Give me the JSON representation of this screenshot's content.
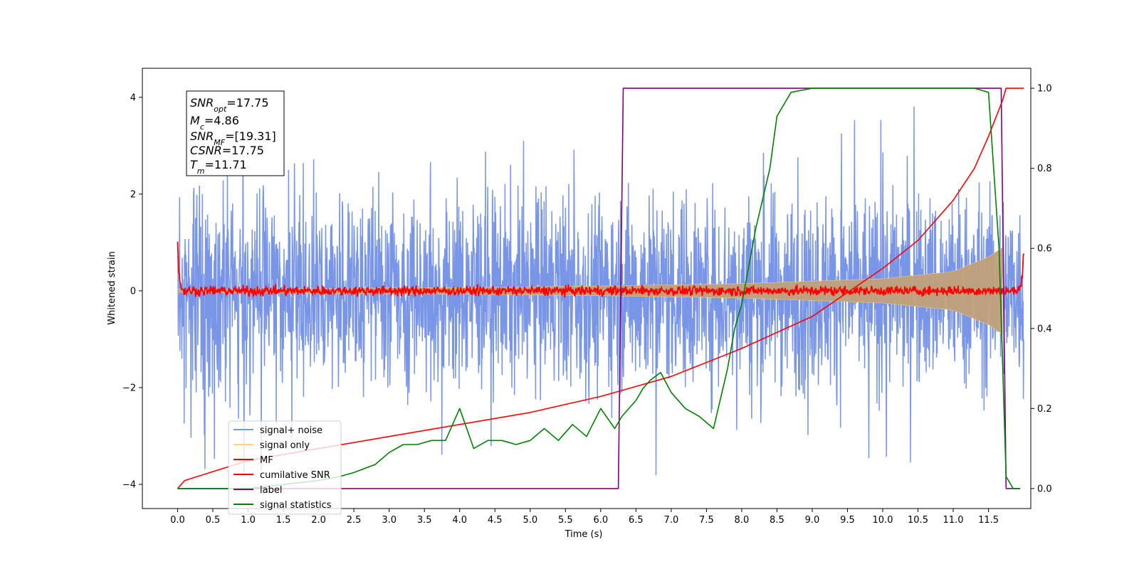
{
  "chart_data": {
    "type": "line",
    "title": "",
    "xlabel": "Time (s)",
    "ylabel": "Whitened strain",
    "y2label": "",
    "xlim": [
      -0.5,
      12.1
    ],
    "ylim": [
      -4.5,
      4.6
    ],
    "y2lim": [
      -0.05,
      1.05
    ],
    "duration": 12.0,
    "x_ticks": [
      "0.0",
      "0.5",
      "1.0",
      "1.5",
      "2.0",
      "2.5",
      "3.0",
      "3.5",
      "4.0",
      "4.5",
      "5.0",
      "5.5",
      "6.0",
      "6.5",
      "7.0",
      "7.5",
      "8.0",
      "8.5",
      "9.0",
      "9.5",
      "10.0",
      "10.5",
      "11.0",
      "11.5"
    ],
    "y_ticks": [
      "-4",
      "-2",
      "0",
      "2",
      "4"
    ],
    "y2_ticks": [
      "0.0",
      "0.2",
      "0.4",
      "0.6",
      "0.8",
      "1.0"
    ],
    "legend_placement": "lower-left",
    "legend": [
      "signal+ noise",
      "signal only",
      "MF",
      "cumilative SNR",
      "label",
      "signal statistics"
    ],
    "series": [
      {
        "name": "signal+ noise",
        "axis": "left",
        "color": "#7895e8",
        "noise_amplitude": 1.0,
        "spike_max": 3.9
      },
      {
        "name": "signal only",
        "axis": "left",
        "color": "#ffd27f",
        "fill_color": "#c0a07a",
        "envelope": {
          "x": [
            0,
            2,
            4,
            6,
            8,
            10,
            11,
            11.5,
            11.7
          ],
          "amp": [
            0.03,
            0.05,
            0.07,
            0.1,
            0.15,
            0.25,
            0.4,
            0.7,
            0.9
          ]
        }
      },
      {
        "name": "MF",
        "axis": "left",
        "color": "#ff0000",
        "noise_amplitude": 0.05,
        "start_value": 1.0,
        "end_value": 0.9
      },
      {
        "name": "cumilative SNR",
        "axis": "right",
        "color": "#ff0000",
        "x": [
          0,
          0.1,
          1,
          2,
          3,
          4,
          5,
          6,
          7,
          8,
          9,
          10,
          10.5,
          11,
          11.3,
          11.5,
          11.7,
          11.75,
          12.0
        ],
        "y": [
          0.0,
          0.02,
          0.07,
          0.1,
          0.13,
          0.16,
          0.19,
          0.23,
          0.28,
          0.35,
          0.43,
          0.55,
          0.62,
          0.72,
          0.8,
          0.88,
          0.97,
          1.0,
          1.0
        ]
      },
      {
        "name": "label",
        "axis": "right",
        "color": "#800080",
        "x": [
          0,
          6.25,
          6.32,
          11.68,
          11.75,
          11.95
        ],
        "y": [
          0.0,
          0.0,
          1.0,
          1.0,
          0.0,
          0.0
        ]
      },
      {
        "name": "signal statistics",
        "axis": "right",
        "color": "#008000",
        "x": [
          0,
          0.5,
          1.0,
          1.5,
          2.0,
          2.3,
          2.5,
          2.8,
          3.0,
          3.2,
          3.4,
          3.6,
          3.8,
          4.0,
          4.2,
          4.4,
          4.6,
          4.8,
          5.0,
          5.2,
          5.4,
          5.6,
          5.8,
          6.0,
          6.2,
          6.3,
          6.5,
          6.6,
          6.7,
          6.85,
          7.0,
          7.2,
          7.4,
          7.6,
          7.8,
          7.9,
          8.0,
          8.2,
          8.4,
          8.5,
          8.7,
          9.0,
          9.5,
          10.0,
          10.5,
          11.0,
          11.3,
          11.5,
          11.65,
          11.75,
          11.85,
          11.95
        ],
        "y": [
          0.0,
          0.0,
          0.0,
          0.01,
          0.02,
          0.03,
          0.04,
          0.06,
          0.09,
          0.11,
          0.11,
          0.12,
          0.12,
          0.2,
          0.1,
          0.12,
          0.12,
          0.11,
          0.12,
          0.15,
          0.12,
          0.16,
          0.13,
          0.2,
          0.15,
          0.18,
          0.22,
          0.25,
          0.27,
          0.29,
          0.24,
          0.2,
          0.18,
          0.15,
          0.3,
          0.4,
          0.46,
          0.65,
          0.8,
          0.93,
          0.99,
          1.0,
          1.0,
          1.0,
          1.0,
          1.0,
          1.0,
          0.99,
          0.6,
          0.03,
          0.0,
          0.0
        ]
      }
    ],
    "annotations": [
      {
        "name": "SNR",
        "sub": "opt",
        "value": "=17.75"
      },
      {
        "name": "M",
        "sub": "c",
        "value": "=4.86"
      },
      {
        "name": "SNR",
        "sub": "MF",
        "value": "=[19.31]"
      },
      {
        "name": "CSNR",
        "sub": "",
        "value": "=17.75"
      },
      {
        "name": "T",
        "sub": "m",
        "value": "=11.71"
      }
    ]
  }
}
